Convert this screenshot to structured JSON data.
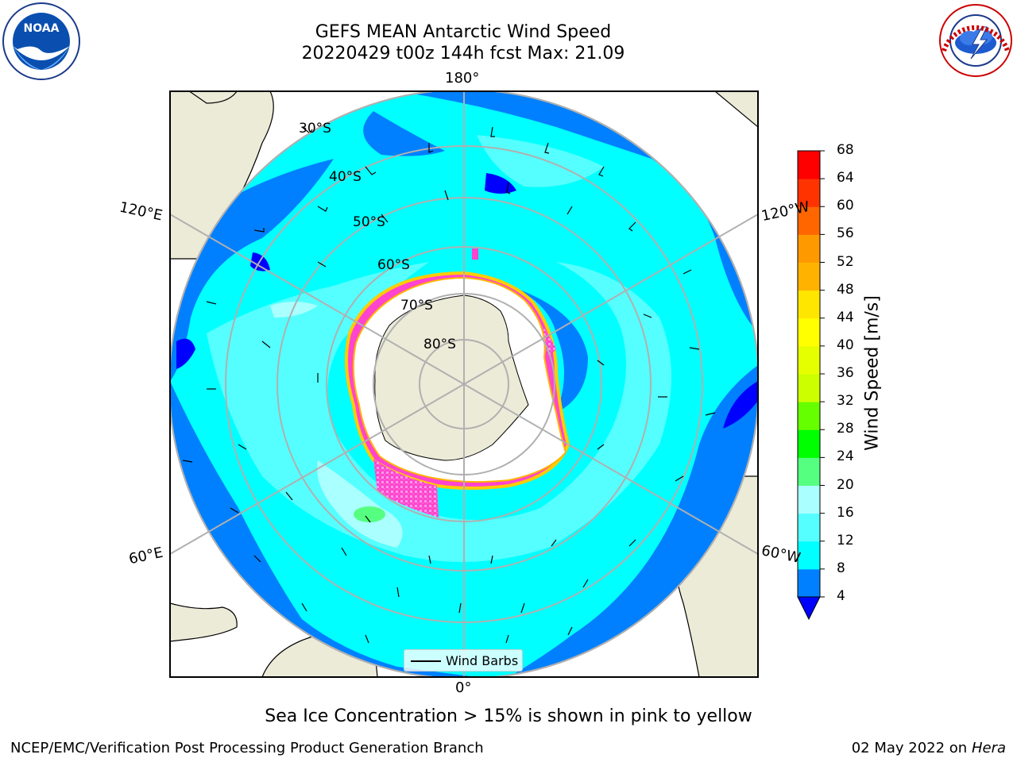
{
  "title": {
    "line1": "GEFS MEAN Antarctic Wind Speed",
    "line2": "20220429 t00z 144h fcst   Max: 21.09"
  },
  "logos": {
    "left": {
      "name": "noaa-logo",
      "text": "NOAA",
      "ring_text": "NATIONAL OCEANIC AND ATMOSPHERIC ADMINISTRATION · U.S. DEPARTMENT OF COMMERCE"
    },
    "right": {
      "name": "nws-logo",
      "ring_text": "NATIONAL WEATHER SERVICE"
    }
  },
  "map": {
    "projection": "south-polar-stereographic",
    "lon_labels": {
      "top": "180°",
      "upper_left": "120°E",
      "upper_right": "120°W",
      "lower_left": "60°E",
      "lower_right": "60°W",
      "bottom": "0°"
    },
    "lat_labels": [
      "30°S",
      "40°S",
      "50°S",
      "60°S",
      "70°S",
      "80°S"
    ],
    "legend_label": "Wind Barbs",
    "colors": {
      "land": "#ecebd8",
      "ocean_low": "#0066ff",
      "ocean_mid": "#00ffff",
      "ocean_high": "#66ffff",
      "ice_pink": "#ff33cc",
      "ice_yellow": "#ffcc00"
    }
  },
  "colorbar": {
    "title": "Wind Speed [m/s]",
    "ticks": [
      "68",
      "64",
      "60",
      "56",
      "52",
      "48",
      "44",
      "40",
      "36",
      "32",
      "28",
      "24",
      "20",
      "16",
      "12",
      "8",
      "4"
    ],
    "colors_bottom_to_top": [
      "#0080ff",
      "#00ffff",
      "#55ffff",
      "#aaffff",
      "#55ff80",
      "#00ff00",
      "#66ff00",
      "#ccff00",
      "#e6ff00",
      "#ffff00",
      "#ffe600",
      "#ffb300",
      "#ff9900",
      "#ff6600",
      "#ff3300",
      "#ff0000"
    ],
    "extend_color": "#0000ff"
  },
  "caption": "Sea Ice Concentration > 15% is shown in pink to yellow",
  "footer": {
    "left": "NCEP/EMC/Verification Post Processing Product Generation Branch",
    "right_date": "02 May 2022 on",
    "right_host": "Hera"
  }
}
